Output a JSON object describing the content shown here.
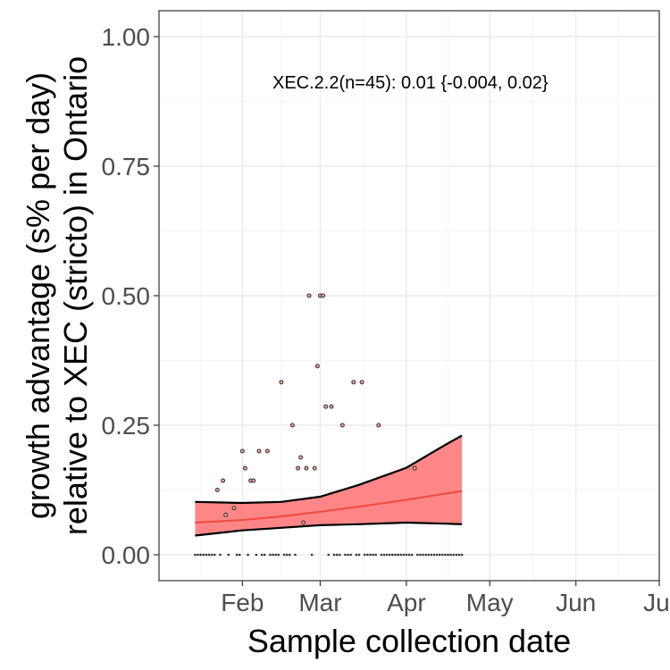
{
  "chart_data": {
    "type": "line",
    "title": "",
    "xlabel": "Sample collection date",
    "ylabel_line1": "growth advantage (s% per day)",
    "ylabel_line2": "relative to XEC (stricto) in Ontario",
    "annotation": "XEC.2.2(n=45): 0.01 {-0.004, 0.02}",
    "x_ticks": [
      {
        "label": "Feb",
        "date": "2025-02-01"
      },
      {
        "label": "Mar",
        "date": "2025-03-01"
      },
      {
        "label": "Apr",
        "date": "2025-04-01"
      },
      {
        "label": "May",
        "date": "2025-05-01"
      },
      {
        "label": "Jun",
        "date": "2025-06-01"
      },
      {
        "label": "Jul",
        "date": "2025-07-01"
      }
    ],
    "y_ticks": [
      "0.00",
      "0.25",
      "0.50",
      "0.75",
      "1.00"
    ],
    "xlim": [
      "2025-01-02",
      "2025-07-01"
    ],
    "ylim": [
      -0.05,
      1.05
    ],
    "grid": true,
    "fit": {
      "color": "#f8766d",
      "ribbon_color": "#ff8080",
      "x": [
        "2025-01-15",
        "2025-02-01",
        "2025-02-15",
        "2025-03-01",
        "2025-03-15",
        "2025-04-01",
        "2025-04-15",
        "2025-04-21"
      ],
      "mid": [
        0.062,
        0.067,
        0.074,
        0.083,
        0.093,
        0.106,
        0.118,
        0.123
      ],
      "lower": [
        0.037,
        0.047,
        0.052,
        0.057,
        0.059,
        0.062,
        0.06,
        0.059
      ],
      "upper": [
        0.102,
        0.1,
        0.102,
        0.112,
        0.135,
        0.168,
        0.212,
        0.23
      ]
    },
    "points": [
      {
        "x": "2025-01-23",
        "y": 0.125
      },
      {
        "x": "2025-01-25",
        "y": 0.143
      },
      {
        "x": "2025-01-26",
        "y": 0.077
      },
      {
        "x": "2025-01-29",
        "y": 0.09
      },
      {
        "x": "2025-02-01",
        "y": 0.2
      },
      {
        "x": "2025-02-02",
        "y": 0.167
      },
      {
        "x": "2025-02-04",
        "y": 0.143
      },
      {
        "x": "2025-02-05",
        "y": 0.143
      },
      {
        "x": "2025-02-07",
        "y": 0.2
      },
      {
        "x": "2025-02-10",
        "y": 0.2
      },
      {
        "x": "2025-02-15",
        "y": 0.333
      },
      {
        "x": "2025-02-19",
        "y": 0.25
      },
      {
        "x": "2025-02-21",
        "y": 0.167
      },
      {
        "x": "2025-02-22",
        "y": 0.188
      },
      {
        "x": "2025-02-23",
        "y": 0.062
      },
      {
        "x": "2025-02-24",
        "y": 0.167
      },
      {
        "x": "2025-02-25",
        "y": 0.5
      },
      {
        "x": "2025-02-27",
        "y": 0.167
      },
      {
        "x": "2025-02-28",
        "y": 0.364
      },
      {
        "x": "2025-03-01",
        "y": 0.5
      },
      {
        "x": "2025-03-02",
        "y": 0.5
      },
      {
        "x": "2025-03-03",
        "y": 0.286
      },
      {
        "x": "2025-03-05",
        "y": 0.286
      },
      {
        "x": "2025-03-09",
        "y": 0.25
      },
      {
        "x": "2025-03-13",
        "y": 0.333
      },
      {
        "x": "2025-03-16",
        "y": 0.333
      },
      {
        "x": "2025-03-22",
        "y": 0.25
      },
      {
        "x": "2025-04-04",
        "y": 0.167
      }
    ],
    "zero_points": [
      "2025-01-15",
      "2025-01-16",
      "2025-01-17",
      "2025-01-18",
      "2025-01-19",
      "2025-01-20",
      "2025-01-21",
      "2025-01-22",
      "2025-01-24",
      "2025-01-27",
      "2025-01-30",
      "2025-01-31",
      "2025-02-03",
      "2025-02-06",
      "2025-02-08",
      "2025-02-09",
      "2025-02-11",
      "2025-02-12",
      "2025-02-13",
      "2025-02-14",
      "2025-02-16",
      "2025-02-17",
      "2025-02-18",
      "2025-02-20",
      "2025-02-26",
      "2025-03-04",
      "2025-03-06",
      "2025-03-07",
      "2025-03-08",
      "2025-03-10",
      "2025-03-11",
      "2025-03-12",
      "2025-03-14",
      "2025-03-15",
      "2025-03-17",
      "2025-03-18",
      "2025-03-19",
      "2025-03-20",
      "2025-03-21",
      "2025-03-23",
      "2025-03-24",
      "2025-03-25",
      "2025-03-26",
      "2025-03-27",
      "2025-03-28",
      "2025-03-29",
      "2025-03-30",
      "2025-03-31",
      "2025-04-01",
      "2025-04-02",
      "2025-04-03",
      "2025-04-05",
      "2025-04-06",
      "2025-04-07",
      "2025-04-08",
      "2025-04-09",
      "2025-04-10",
      "2025-04-11",
      "2025-04-12",
      "2025-04-13",
      "2025-04-14",
      "2025-04-15",
      "2025-04-16",
      "2025-04-17",
      "2025-04-18",
      "2025-04-19",
      "2025-04-20",
      "2025-04-21"
    ]
  }
}
